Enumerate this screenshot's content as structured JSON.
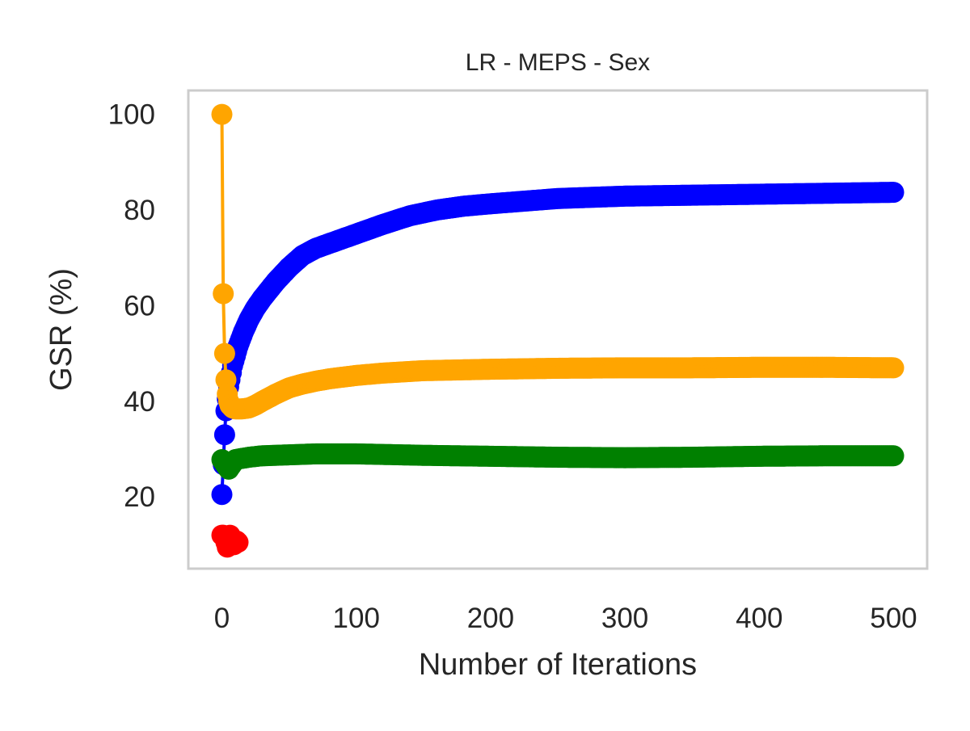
{
  "chart_data": {
    "type": "line",
    "title": "LR - MEPS - Sex",
    "xlabel": "Number of Iterations",
    "ylabel": "GSR (%)",
    "xlim": [
      -25,
      525
    ],
    "ylim": [
      5,
      105
    ],
    "xticks": [
      0,
      100,
      200,
      300,
      400,
      500
    ],
    "xtick_labels": [
      "0",
      "100",
      "200",
      "300",
      "400",
      "500"
    ],
    "yticks": [
      20,
      40,
      60,
      80,
      100
    ],
    "ytick_labels": [
      "20",
      "40",
      "60",
      "80",
      "100"
    ],
    "grid": false,
    "legend": "none",
    "markers": true,
    "series": [
      {
        "color": "#0000ff",
        "x": [
          0,
          2,
          3,
          5,
          8,
          12,
          16,
          20,
          25,
          30,
          40,
          50,
          60,
          70,
          80,
          90,
          100,
          120,
          140,
          160,
          180,
          200,
          250,
          300,
          350,
          400,
          450,
          500
        ],
        "y": [
          20.5,
          33.0,
          38.0,
          43.0,
          47.5,
          51.5,
          54.5,
          57.0,
          59.5,
          61.5,
          65.0,
          68.0,
          70.5,
          72.0,
          73.0,
          74.0,
          75.0,
          77.0,
          78.8,
          80.0,
          80.8,
          81.3,
          82.4,
          82.9,
          83.1,
          83.3,
          83.5,
          83.7
        ]
      },
      {
        "color": "#ffa500",
        "x": [
          0,
          1,
          2,
          3,
          4,
          5,
          6,
          8,
          10,
          15,
          20,
          25,
          30,
          40,
          50,
          60,
          70,
          80,
          100,
          120,
          150,
          200,
          250,
          300,
          350,
          400,
          450,
          500
        ],
        "y": [
          100.0,
          62.5,
          50.0,
          44.5,
          41.5,
          40.0,
          39.2,
          38.6,
          38.4,
          38.4,
          38.6,
          39.2,
          40.0,
          41.5,
          42.8,
          43.6,
          44.2,
          44.7,
          45.4,
          45.9,
          46.4,
          46.7,
          46.9,
          47.0,
          47.0,
          47.1,
          47.1,
          47.0
        ]
      },
      {
        "color": "#008000",
        "x": [
          0,
          2,
          5,
          10,
          20,
          30,
          50,
          70,
          100,
          150,
          200,
          250,
          300,
          350,
          400,
          450,
          500
        ],
        "y": [
          27.8,
          27.0,
          25.8,
          27.8,
          28.3,
          28.6,
          28.8,
          29.0,
          29.0,
          28.7,
          28.5,
          28.3,
          28.2,
          28.3,
          28.5,
          28.6,
          28.6
        ]
      },
      {
        "color": "#ff0000",
        "x": [
          0,
          1,
          2,
          3,
          4,
          5,
          6,
          7,
          8,
          9,
          10,
          11,
          12
        ],
        "y": [
          12.0,
          12.0,
          11.5,
          10.5,
          9.5,
          10.5,
          12.0,
          11.5,
          10.5,
          10.0,
          10.5,
          10.8,
          10.5
        ]
      }
    ]
  }
}
